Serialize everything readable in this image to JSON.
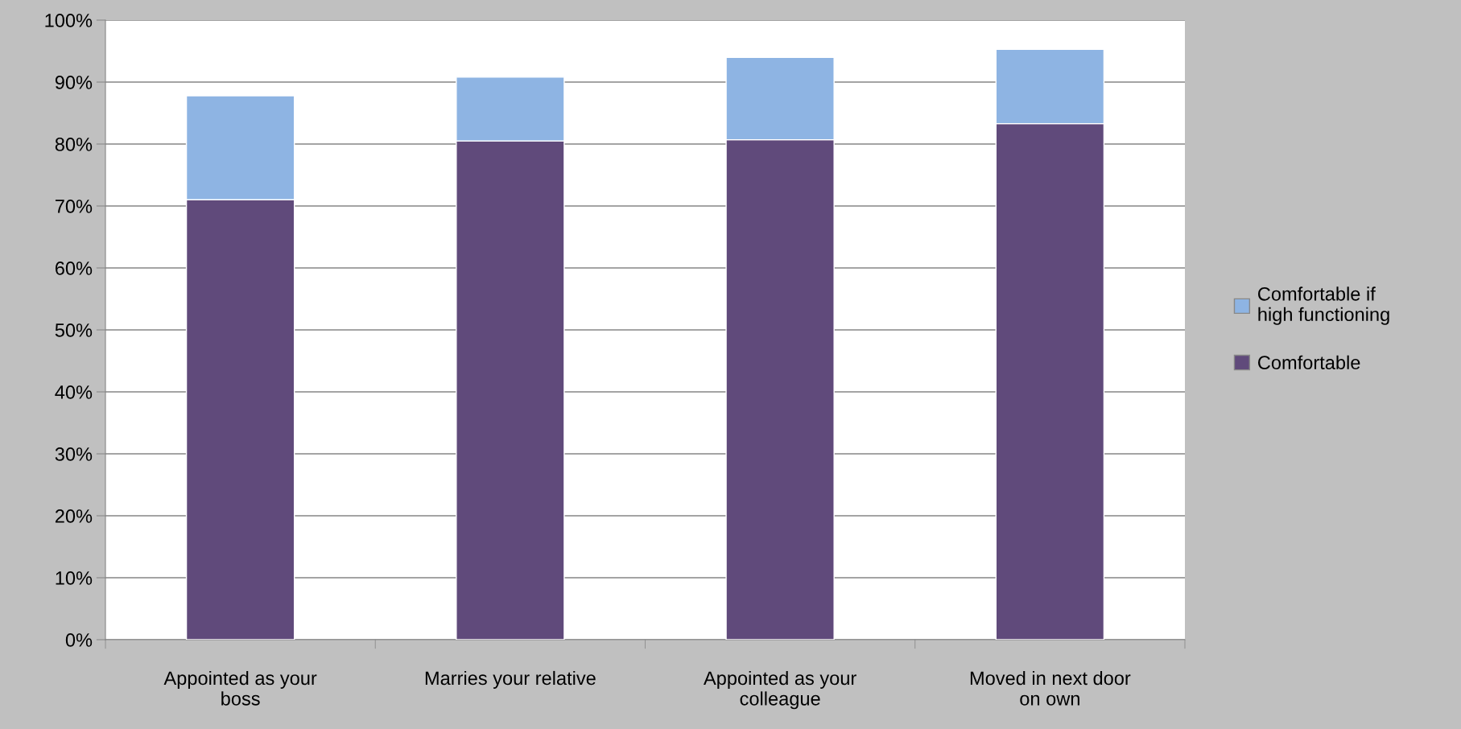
{
  "chart_data": {
    "type": "bar",
    "stacked": true,
    "categories": [
      "Appointed as your\nboss",
      "Marries your relative",
      "Appointed as your\ncolleague",
      "Moved in next door\non own"
    ],
    "series": [
      {
        "name": "Comfortable",
        "color": "#604a7b",
        "values": [
          71,
          80.5,
          80.7,
          83.3
        ]
      },
      {
        "name": "Comfortable if\nhigh functioning",
        "color": "#8eb4e3",
        "values": [
          16.8,
          10.3,
          13.3,
          12
        ]
      }
    ],
    "ylim": [
      0,
      100
    ],
    "yticks": [
      {
        "value": 0,
        "label": "0%"
      },
      {
        "value": 10,
        "label": "10%"
      },
      {
        "value": 20,
        "label": "20%"
      },
      {
        "value": 30,
        "label": "30%"
      },
      {
        "value": 40,
        "label": "40%"
      },
      {
        "value": 50,
        "label": "50%"
      },
      {
        "value": 60,
        "label": "60%"
      },
      {
        "value": 70,
        "label": "70%"
      },
      {
        "value": 80,
        "label": "80%"
      },
      {
        "value": 90,
        "label": "90%"
      },
      {
        "value": 100,
        "label": "100%"
      }
    ],
    "grid": "y",
    "legend": "right"
  }
}
